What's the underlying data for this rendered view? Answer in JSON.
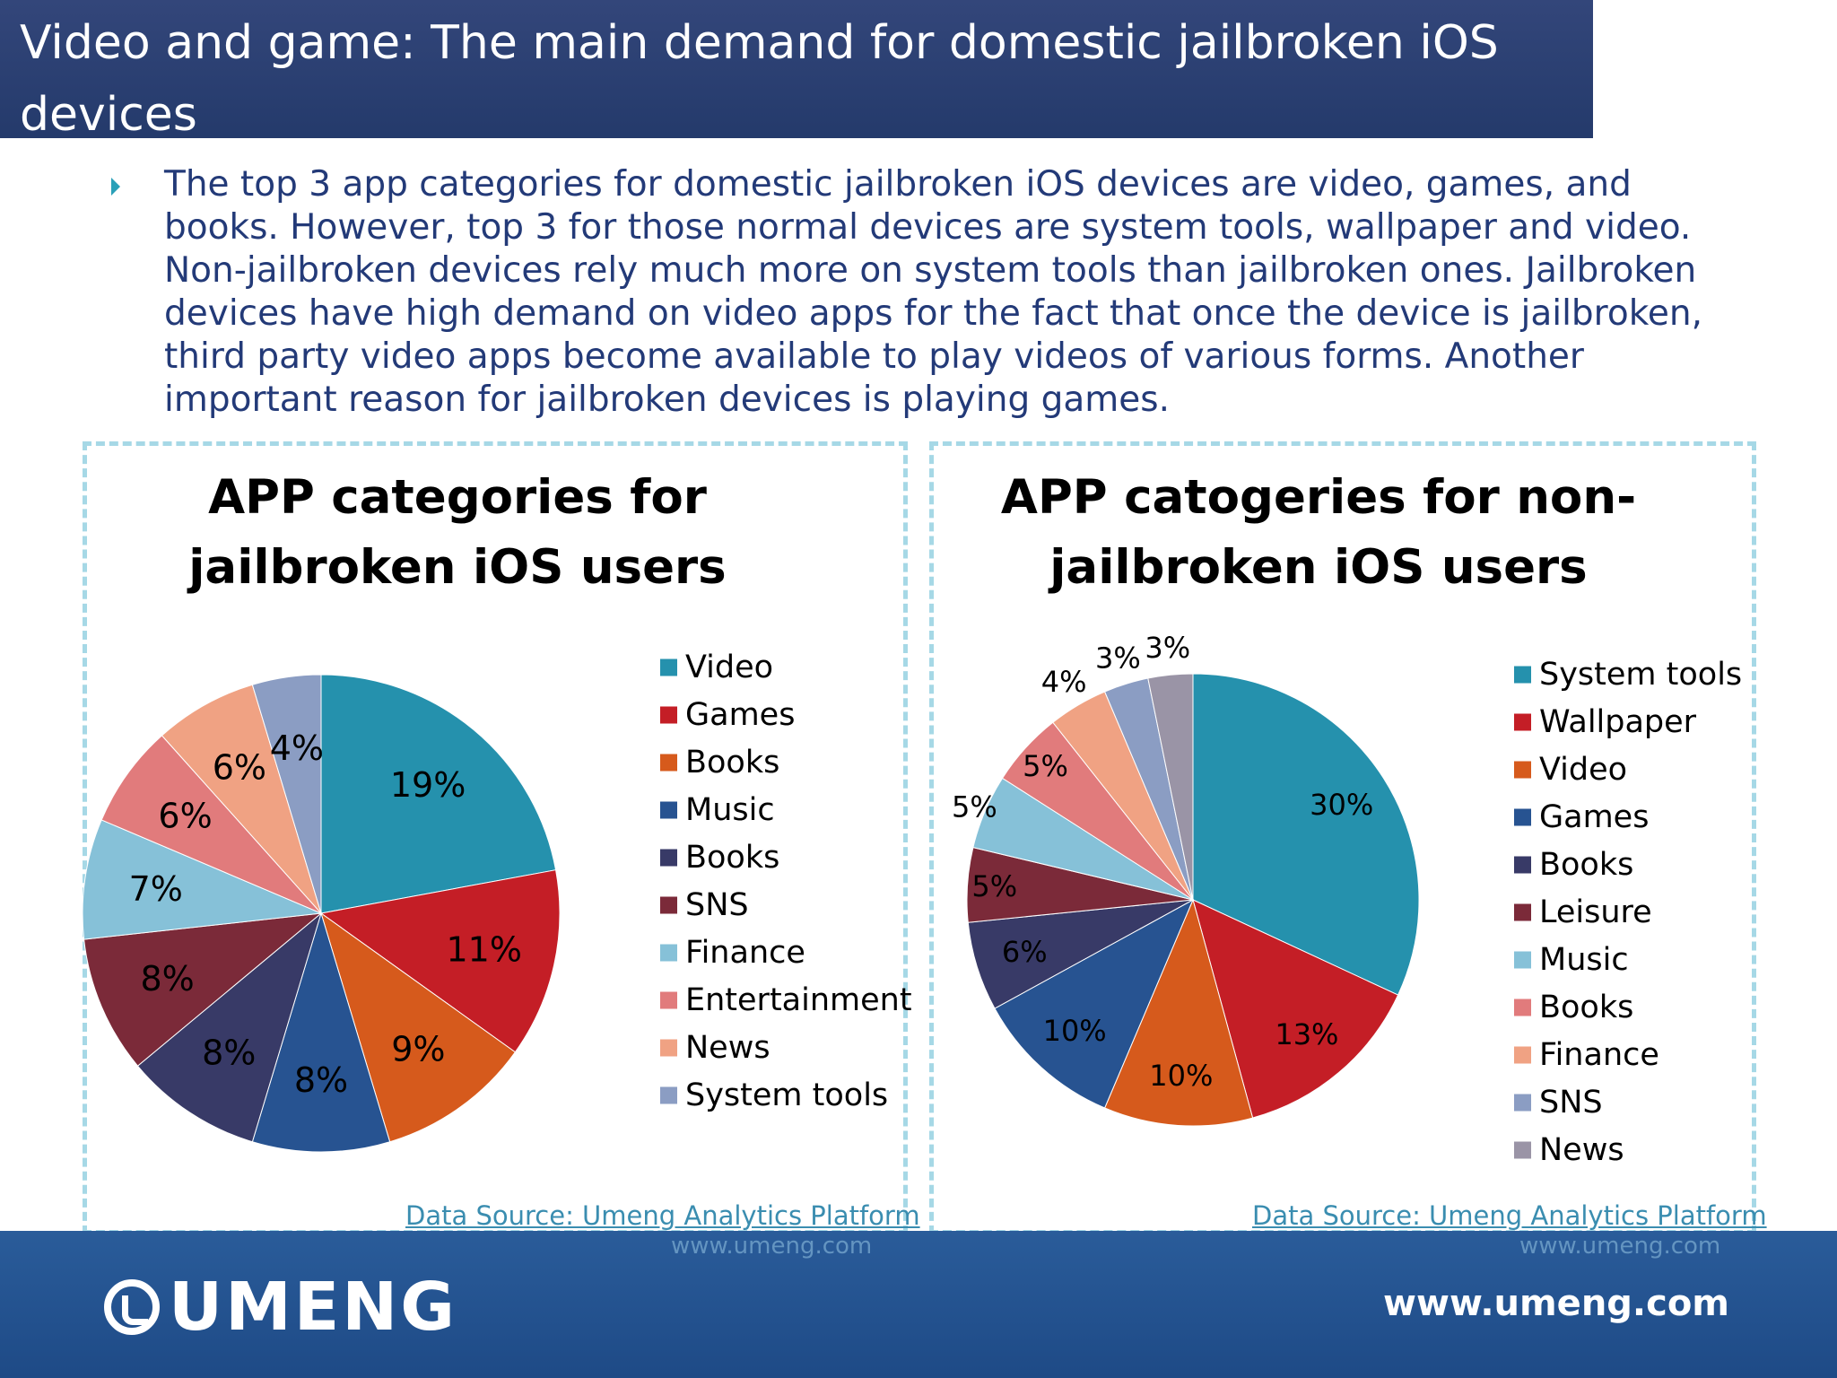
{
  "header": {
    "title": "Video and game: The main demand for domestic jailbroken iOS devices"
  },
  "body": {
    "bullet": "The top 3 app categories for domestic jailbroken iOS devices are video, games, and books. However, top 3 for those normal devices are system tools, wallpaper and video. Non-jailbroken devices rely much more on system tools than jailbroken ones. Jailbroken devices have high demand on video apps for the fact that once the device is jailbroken, third party video apps become available to play videos of various forms. Another important reason for jailbroken devices is playing games."
  },
  "sources": {
    "left": "Data Source: Umeng Analytics Platform",
    "right": "Data Source: Umeng Analytics Platform",
    "watermark": "www.umeng.com"
  },
  "footer": {
    "logo": "UMENG",
    "url": "www.umeng.com"
  },
  "colors": {
    "title_bar": "#243a6b",
    "footer": "#1e4a86",
    "panel_border": "#a6d8e6",
    "source_text": "#3a8db0"
  },
  "chart_data": [
    {
      "type": "pie",
      "title": "APP categories for jailbroken iOS users",
      "categories": [
        "Video",
        "Games",
        "Books",
        "Music",
        "Books",
        "SNS",
        "Finance",
        "Entertainment",
        "News",
        "System tools"
      ],
      "values": [
        19,
        11,
        9,
        8,
        8,
        8,
        7,
        6,
        6,
        4
      ],
      "labels": [
        "19%",
        "11%",
        "9%",
        "8%",
        "8%",
        "8%",
        "7%",
        "6%",
        "6%",
        "4%"
      ],
      "colors": [
        "#2591ad",
        "#c41e26",
        "#d65a1c",
        "#275391",
        "#383a67",
        "#7b2a39",
        "#86c1d8",
        "#e17b7c",
        "#f0a283",
        "#8b9dc3"
      ],
      "legend_position": "right"
    },
    {
      "type": "pie",
      "title": "APP catogeries for non-jailbroken iOS users",
      "categories": [
        "System tools",
        "Wallpaper",
        "Video",
        "Games",
        "Books",
        "Leisure",
        "Music",
        "Books",
        "Finance",
        "SNS",
        "News"
      ],
      "values": [
        30,
        13,
        10,
        10,
        6,
        5,
        5,
        5,
        4,
        3,
        3
      ],
      "labels": [
        "30%",
        "13%",
        "10%",
        "10%",
        "6%",
        "5%",
        "5%",
        "5%",
        "4%",
        "3%",
        "3%"
      ],
      "colors": [
        "#2591ad",
        "#c41e26",
        "#d65a1c",
        "#275391",
        "#383a67",
        "#7b2a39",
        "#86c1d8",
        "#e17b7c",
        "#f0a283",
        "#8b9dc3",
        "#9a94a6"
      ],
      "legend_position": "right"
    }
  ]
}
